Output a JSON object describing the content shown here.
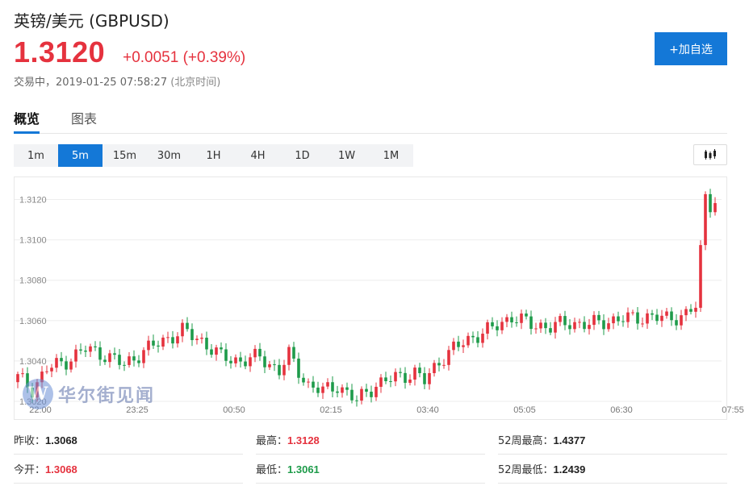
{
  "header": {
    "title": "英镑/美元  (GBPUSD)",
    "price": "1.3120",
    "change": "+0.0051 (+0.39%)",
    "status_prefix": "交易中，",
    "timestamp": "2019-01-25 07:58:27",
    "timezone": "(北京时间)",
    "add_button": "+加自选"
  },
  "tabs": [
    {
      "label": "概览",
      "active": true
    },
    {
      "label": "图表",
      "active": false
    }
  ],
  "periods": [
    "1m",
    "5m",
    "15m",
    "30m",
    "1H",
    "4H",
    "1D",
    "1W",
    "1M"
  ],
  "active_period": "5m",
  "chart_type_icon": "candlestick-icon",
  "watermark": {
    "logo_letter": "W",
    "text": "华尔街见闻"
  },
  "colors": {
    "up": "#e5323e",
    "down": "#1e9b4a",
    "accent": "#1478d7"
  },
  "chart_data": {
    "type": "candlestick",
    "y_ticks": [
      "1.3120",
      "1.3100",
      "1.3080",
      "1.3060",
      "1.3040",
      "1.3020"
    ],
    "y_tick_values": [
      1.312,
      1.31,
      1.308,
      1.306,
      1.304,
      1.302
    ],
    "ylim": [
      1.3016,
      1.3127
    ],
    "x_ticks": [
      "22:00",
      "23:25",
      "00:50",
      "02:15",
      "03:40",
      "05:05",
      "06:30",
      "07:55"
    ],
    "candle_count": 145,
    "anchors": [
      [
        0,
        1.3032
      ],
      [
        3,
        1.3026
      ],
      [
        6,
        1.3036
      ],
      [
        10,
        1.304
      ],
      [
        14,
        1.3046
      ],
      [
        18,
        1.3043
      ],
      [
        22,
        1.3038
      ],
      [
        26,
        1.3045
      ],
      [
        30,
        1.305
      ],
      [
        34,
        1.3055
      ],
      [
        38,
        1.305
      ],
      [
        42,
        1.3042
      ],
      [
        46,
        1.304
      ],
      [
        50,
        1.3042
      ],
      [
        54,
        1.3035
      ],
      [
        56,
        1.3043
      ],
      [
        58,
        1.3035
      ],
      [
        60,
        1.3028
      ],
      [
        63,
        1.3025
      ],
      [
        66,
        1.3028
      ],
      [
        70,
        1.302
      ],
      [
        72,
        1.3025
      ],
      [
        74,
        1.3028
      ],
      [
        78,
        1.3032
      ],
      [
        82,
        1.3034
      ],
      [
        84,
        1.303
      ],
      [
        87,
        1.304
      ],
      [
        90,
        1.3046
      ],
      [
        94,
        1.3052
      ],
      [
        98,
        1.3056
      ],
      [
        102,
        1.3062
      ],
      [
        106,
        1.3058
      ],
      [
        110,
        1.3057
      ],
      [
        114,
        1.3059
      ],
      [
        118,
        1.3058
      ],
      [
        122,
        1.306
      ],
      [
        126,
        1.3061
      ],
      [
        130,
        1.3062
      ],
      [
        134,
        1.3061
      ],
      [
        136,
        1.3062
      ],
      [
        138,
        1.3063
      ],
      [
        140,
        1.3067
      ],
      [
        142,
        1.3122
      ],
      [
        143,
        1.3118
      ],
      [
        144,
        1.312
      ]
    ]
  },
  "stats": [
    {
      "label": "昨收：",
      "value": "1.3068",
      "color": "black"
    },
    {
      "label": "最高：",
      "value": "1.3128",
      "color": "red"
    },
    {
      "label": "52周最高：",
      "value": "1.4377",
      "color": "black"
    },
    {
      "label": "今开：",
      "value": "1.3068",
      "color": "red"
    },
    {
      "label": "最低：",
      "value": "1.3061",
      "color": "green"
    },
    {
      "label": "52周最低：",
      "value": "1.2439",
      "color": "black"
    }
  ]
}
